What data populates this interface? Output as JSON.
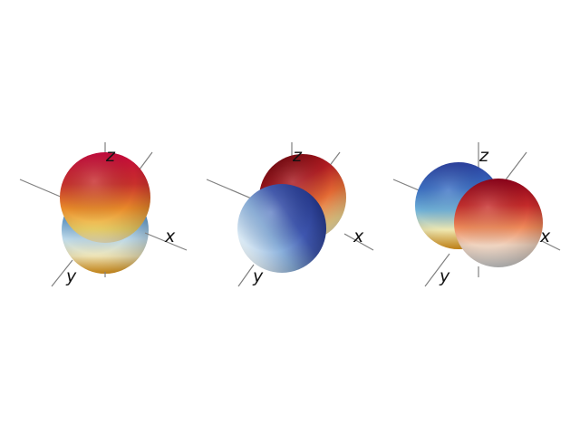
{
  "panels": [
    {
      "id": "left",
      "axis_labels": {
        "x": "x",
        "y": "y",
        "z": "z"
      },
      "spheres": [
        {
          "role": "lower",
          "colormap": "blue-white-gold",
          "top_color": "#2f5f9a",
          "mid_color": "#8fbcd8",
          "bottom_color": "#e8a020"
        },
        {
          "role": "upper",
          "colormap": "red-gold",
          "top_color": "#c8103a",
          "mid_color": "#d84a2a",
          "bottom_color": "#f3e6a8"
        }
      ]
    },
    {
      "id": "middle",
      "axis_labels": {
        "x": "x",
        "y": "y",
        "z": "z"
      },
      "spheres": [
        {
          "role": "back",
          "colormap": "dark-red-gold",
          "top_color": "#7a0a10",
          "mid_color": "#d8442c",
          "bottom_color": "#f0d48a"
        },
        {
          "role": "front",
          "colormap": "navy-white",
          "top_color": "#2a3f8e",
          "mid_color": "#6a8fd0",
          "bottom_color": "#f4f8fb"
        }
      ]
    },
    {
      "id": "right",
      "axis_labels": {
        "x": "x",
        "y": "y",
        "z": "z"
      },
      "spheres": [
        {
          "role": "back",
          "colormap": "blue-gold",
          "top_color": "#2a4fae",
          "mid_color": "#5aa0d0",
          "bottom_color": "#e8a830"
        },
        {
          "role": "front",
          "colormap": "red-gray",
          "top_color": "#9a0a22",
          "mid_color": "#e05838",
          "bottom_color": "#d8d8d8"
        }
      ]
    }
  ]
}
